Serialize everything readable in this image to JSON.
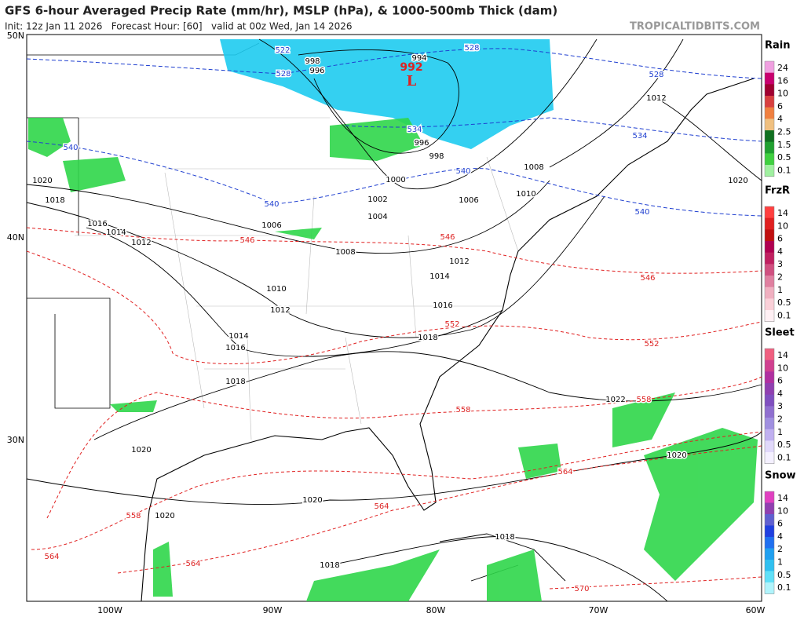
{
  "header": {
    "title": "GFS 6-hour Averaged Precip Rate (mm/hr), MSLP (hPa), & 1000-500mb Thick (dam)",
    "subtitle": "Init: 12z Jan 11 2026   Forecast Hour: [60]   valid at 00z Wed, Jan 14 2026",
    "site": "TROPICALTIDBITS.COM"
  },
  "map": {
    "lon_ticks": [
      "100W",
      "90W",
      "80W",
      "70W",
      "60W"
    ],
    "lat_ticks": [
      "50N",
      "40N",
      "30N"
    ],
    "low": {
      "pressure": "992",
      "symbol": "L"
    },
    "isobar_labels": [
      "998",
      "996",
      "994",
      "1012",
      "1008",
      "1020",
      "1018",
      "1016",
      "1014",
      "1012",
      "1000",
      "998",
      "996",
      "1002",
      "1004",
      "1006",
      "1006",
      "1010",
      "1020",
      "1008",
      "1012",
      "1014",
      "1010",
      "1012",
      "1016",
      "1014",
      "1016",
      "1018",
      "1018",
      "1022",
      "1020",
      "1020",
      "1020",
      "1020",
      "1018",
      "1018"
    ],
    "thickness_blue_labels": [
      "522",
      "528",
      "528",
      "528",
      "540",
      "534",
      "534",
      "540",
      "540",
      "540"
    ],
    "thickness_red_labels": [
      "546",
      "546",
      "546",
      "552",
      "552",
      "558",
      "558",
      "564",
      "564",
      "558",
      "564",
      "564",
      "570"
    ]
  },
  "legends": [
    {
      "title": "Rain",
      "labels": [
        "24",
        "16",
        "10",
        "6",
        "4",
        "2.5",
        "1.5",
        "0.5",
        "0.1"
      ]
    },
    {
      "title": "FrzR",
      "labels": [
        "14",
        "10",
        "6",
        "4",
        "3",
        "2",
        "1",
        "0.5",
        "0.1"
      ]
    },
    {
      "title": "Sleet",
      "labels": [
        "14",
        "10",
        "6",
        "4",
        "3",
        "2",
        "1",
        "0.5",
        "0.1"
      ]
    },
    {
      "title": "Snow",
      "labels": [
        "14",
        "10",
        "6",
        "4",
        "2",
        "1",
        "0.5",
        "0.1"
      ]
    }
  ]
}
